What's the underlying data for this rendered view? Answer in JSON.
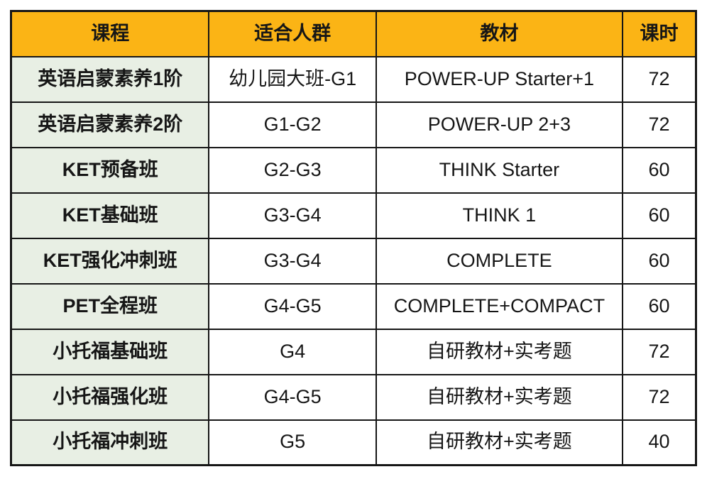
{
  "chart_data": {
    "type": "table",
    "columns": [
      "课程",
      "适合人群",
      "教材",
      "课时"
    ],
    "rows": [
      [
        "英语启蒙素养1阶",
        "幼儿园大班-G1",
        "POWER-UP Starter+1",
        "72"
      ],
      [
        "英语启蒙素养2阶",
        "G1-G2",
        "POWER-UP 2+3",
        "72"
      ],
      [
        "KET预备班",
        "G2-G3",
        "THINK Starter",
        "60"
      ],
      [
        "KET基础班",
        "G3-G4",
        "THINK 1",
        "60"
      ],
      [
        "KET强化冲刺班",
        "G3-G4",
        "COMPLETE",
        "60"
      ],
      [
        "PET全程班",
        "G4-G5",
        "COMPLETE+COMPACT",
        "60"
      ],
      [
        "小托福基础班",
        "G4",
        "自研教材+实考题",
        "72"
      ],
      [
        "小托福强化班",
        "G4-G5",
        "自研教材+实考题",
        "72"
      ],
      [
        "小托福冲刺班",
        "G5",
        "自研教材+实考题",
        "40"
      ]
    ]
  },
  "colors": {
    "header_bg": "#FBB415",
    "first_column_bg": "#E8EFE4",
    "border": "#161616",
    "text": "#161616"
  }
}
